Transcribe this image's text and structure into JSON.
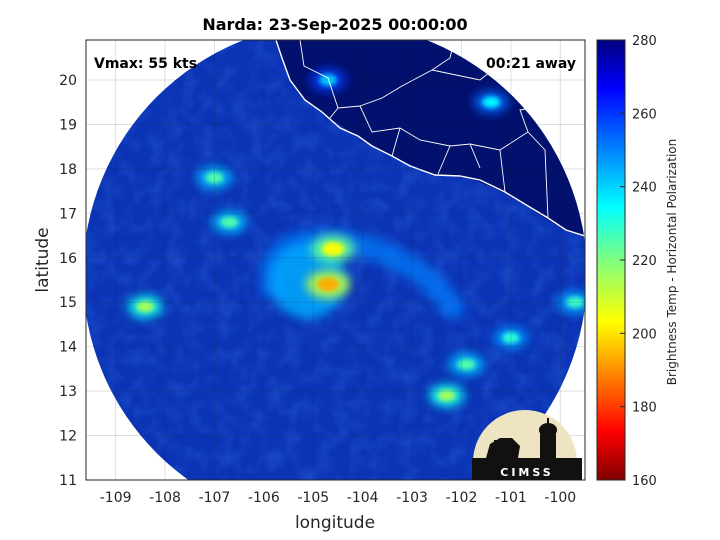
{
  "title": "Narda: 23-Sep-2025 00:00:00",
  "annotations": {
    "vmax": "Vmax: 55 kts",
    "time_away": "00:21 away"
  },
  "logo_text": "CIMSS",
  "chart_data": {
    "type": "heatmap",
    "title": "Narda: 23-Sep-2025 00:00:00",
    "xlabel": "longitude",
    "ylabel": "latitude",
    "xlim": [
      -109.6,
      -99.5
    ],
    "ylim": [
      11,
      20.9
    ],
    "x_ticks": [
      -109,
      -108,
      -107,
      -106,
      -105,
      -104,
      -103,
      -102,
      -101,
      -100
    ],
    "y_ticks": [
      11,
      12,
      13,
      14,
      15,
      16,
      17,
      18,
      19,
      20
    ],
    "grid": true,
    "colorbar": {
      "label": "Brightness Temp - Horizontal Polarization",
      "range": [
        160,
        280
      ],
      "ticks": [
        160,
        180,
        200,
        220,
        240,
        260,
        280
      ],
      "colormap": "jet"
    },
    "colors": {
      "background": "#0a2ea8",
      "land": "#02106e",
      "coast": "#ffffff"
    },
    "storm_center": {
      "lon": -104.7,
      "lat": 15.6
    },
    "features": [
      {
        "kind": "eye-core",
        "lon": -104.7,
        "lat": 15.4,
        "tb": 195
      },
      {
        "kind": "inner-ring",
        "lon": -104.6,
        "lat": 16.2,
        "tb": 205
      },
      {
        "kind": "convection",
        "lon": -108.4,
        "lat": 14.9,
        "tb": 215
      },
      {
        "kind": "convection",
        "lon": -107.0,
        "lat": 17.8,
        "tb": 225
      },
      {
        "kind": "convection",
        "lon": -106.7,
        "lat": 16.8,
        "tb": 225
      },
      {
        "kind": "convection",
        "lon": -102.3,
        "lat": 12.9,
        "tb": 215
      },
      {
        "kind": "convection",
        "lon": -101.9,
        "lat": 13.6,
        "tb": 225
      },
      {
        "kind": "convection",
        "lon": -101.0,
        "lat": 14.2,
        "tb": 230
      },
      {
        "kind": "convection",
        "lon": -99.7,
        "lat": 15.0,
        "tb": 228
      },
      {
        "kind": "convection",
        "lon": -101.4,
        "lat": 19.5,
        "tb": 235
      },
      {
        "kind": "convection",
        "lon": -104.7,
        "lat": 20.0,
        "tb": 240
      }
    ]
  }
}
